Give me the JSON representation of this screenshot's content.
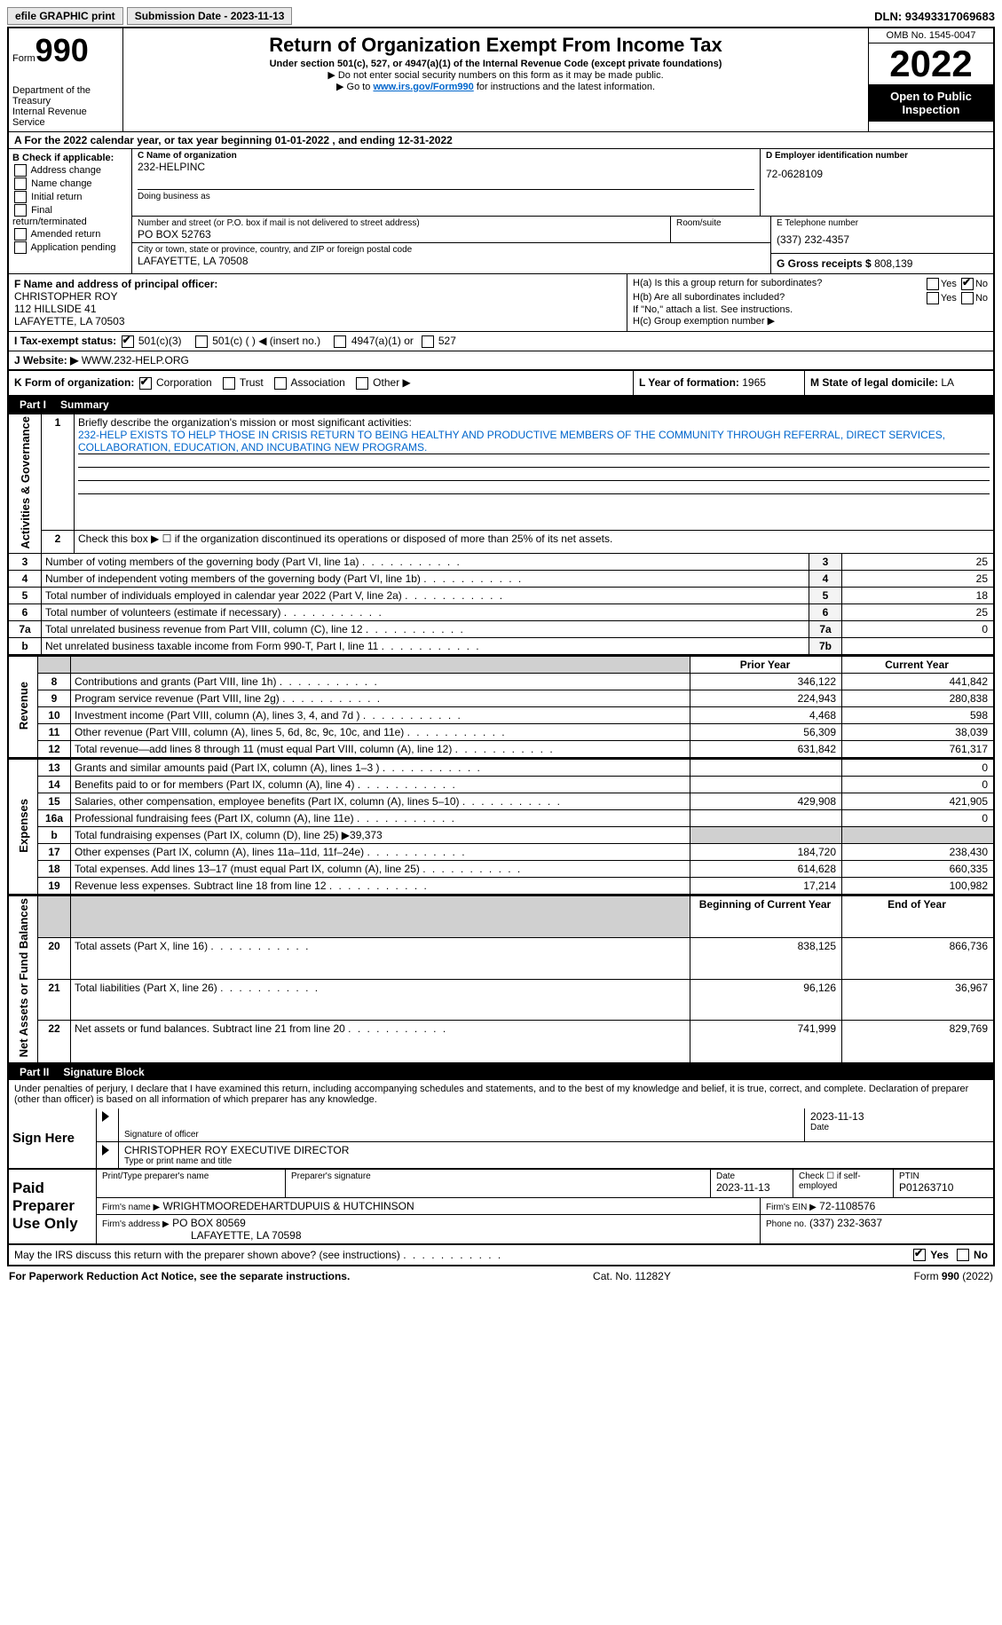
{
  "topbar": {
    "efile": "efile GRAPHIC print",
    "submission_label": "Submission Date - 2023-11-13",
    "dln_label": "DLN: 93493317069683"
  },
  "header": {
    "form_word": "Form",
    "form_num": "990",
    "dept": "Department of the Treasury",
    "irs": "Internal Revenue Service",
    "title": "Return of Organization Exempt From Income Tax",
    "subtitle": "Under section 501(c), 527, or 4947(a)(1) of the Internal Revenue Code (except private foundations)",
    "note1": "▶ Do not enter social security numbers on this form as it may be made public.",
    "note2_pre": "▶ Go to ",
    "note2_link": "www.irs.gov/Form990",
    "note2_post": " for instructions and the latest information.",
    "omb": "OMB No. 1545-0047",
    "year": "2022",
    "open": "Open to Public Inspection"
  },
  "rowA": {
    "text_pre": "A For the 2022 calendar year, or tax year beginning ",
    "begin": "01-01-2022",
    "mid": "  , and ending ",
    "end": "12-31-2022"
  },
  "colB": {
    "title": "B Check if applicable:",
    "opts": [
      "Address change",
      "Name change",
      "Initial return",
      "Final return/terminated",
      "Amended return",
      "Application pending"
    ]
  },
  "colC": {
    "name_label": "C Name of organization",
    "name": "232-HELPINC",
    "dba_label": "Doing business as",
    "addr_label": "Number and street (or P.O. box if mail is not delivered to street address)",
    "room_label": "Room/suite",
    "addr": "PO BOX 52763",
    "city_label": "City or town, state or province, country, and ZIP or foreign postal code",
    "city": "LAFAYETTE, LA   70508"
  },
  "colD": {
    "ein_label": "D Employer identification number",
    "ein": "72-0628109",
    "tel_label": "E Telephone number",
    "tel": "(337) 232-4357",
    "gross_label": "G Gross receipts $ ",
    "gross": "808,139"
  },
  "rowF": {
    "label": "F Name and address of principal officer:",
    "l1": "CHRISTOPHER ROY",
    "l2": "112 HILLSIDE 41",
    "l3": "LAFAYETTE, LA   70503"
  },
  "rowH": {
    "ha": "H(a)  Is this a group return for subordinates?",
    "hb": "H(b)  Are all subordinates included?",
    "hb_note": "If \"No,\" attach a list. See instructions.",
    "hc": "H(c)  Group exemption number ▶",
    "yes": "Yes",
    "no": "No"
  },
  "rowI": {
    "label": "I  Tax-exempt status:",
    "o1": "501(c)(3)",
    "o2": "501(c) (   ) ◀ (insert no.)",
    "o3": "4947(a)(1) or",
    "o4": "527"
  },
  "rowJ": {
    "label": "J  Website: ▶ ",
    "val": "WWW.232-HELP.ORG"
  },
  "rowK": {
    "label": "K Form of organization:",
    "o1": "Corporation",
    "o2": "Trust",
    "o3": "Association",
    "o4": "Other ▶",
    "l_label": "L Year of formation: ",
    "l_val": "1965",
    "m_label": "M State of legal domicile: ",
    "m_val": "LA"
  },
  "part1": {
    "tab": "Part I",
    "title": "Summary",
    "l1_label": "Briefly describe the organization's mission or most significant activities:",
    "l1_text": "232-HELP EXISTS TO HELP THOSE IN CRISIS RETURN TO BEING HEALTHY AND PRODUCTIVE MEMBERS OF THE COMMUNITY THROUGH REFERRAL, DIRECT SERVICES, COLLABORATION, EDUCATION, AND INCUBATING NEW PROGRAMS.",
    "l2": "Check this box ▶ ☐  if the organization discontinued its operations or disposed of more than 25% of its net assets.",
    "vlabels": {
      "a": "Activities & Governance",
      "b": "Revenue",
      "c": "Expenses",
      "d": "Net Assets or Fund Balances"
    },
    "rows": [
      {
        "n": "3",
        "t": "Number of voting members of the governing body (Part VI, line 1a)",
        "box": "3",
        "v2": "25"
      },
      {
        "n": "4",
        "t": "Number of independent voting members of the governing body (Part VI, line 1b)",
        "box": "4",
        "v2": "25"
      },
      {
        "n": "5",
        "t": "Total number of individuals employed in calendar year 2022 (Part V, line 2a)",
        "box": "5",
        "v2": "18"
      },
      {
        "n": "6",
        "t": "Total number of volunteers (estimate if necessary)",
        "box": "6",
        "v2": "25"
      },
      {
        "n": "7a",
        "t": "Total unrelated business revenue from Part VIII, column (C), line 12",
        "box": "7a",
        "v2": "0"
      },
      {
        "n": "b",
        "t": "Net unrelated business taxable income from Form 990-T, Part I, line 11",
        "box": "7b",
        "v2": ""
      }
    ],
    "hdr_prior": "Prior Year",
    "hdr_curr": "Current Year",
    "rev": [
      {
        "n": "8",
        "t": "Contributions and grants (Part VIII, line 1h)",
        "p": "346,122",
        "c": "441,842"
      },
      {
        "n": "9",
        "t": "Program service revenue (Part VIII, line 2g)",
        "p": "224,943",
        "c": "280,838"
      },
      {
        "n": "10",
        "t": "Investment income (Part VIII, column (A), lines 3, 4, and 7d )",
        "p": "4,468",
        "c": "598"
      },
      {
        "n": "11",
        "t": "Other revenue (Part VIII, column (A), lines 5, 6d, 8c, 9c, 10c, and 11e)",
        "p": "56,309",
        "c": "38,039"
      },
      {
        "n": "12",
        "t": "Total revenue—add lines 8 through 11 (must equal Part VIII, column (A), line 12)",
        "p": "631,842",
        "c": "761,317"
      }
    ],
    "exp": [
      {
        "n": "13",
        "t": "Grants and similar amounts paid (Part IX, column (A), lines 1–3 )",
        "p": "",
        "c": "0"
      },
      {
        "n": "14",
        "t": "Benefits paid to or for members (Part IX, column (A), line 4)",
        "p": "",
        "c": "0"
      },
      {
        "n": "15",
        "t": "Salaries, other compensation, employee benefits (Part IX, column (A), lines 5–10)",
        "p": "429,908",
        "c": "421,905"
      },
      {
        "n": "16a",
        "t": "Professional fundraising fees (Part IX, column (A), line 11e)",
        "p": "",
        "c": "0"
      },
      {
        "n": "b",
        "t": "Total fundraising expenses (Part IX, column (D), line 25) ▶39,373",
        "shade": true
      },
      {
        "n": "17",
        "t": "Other expenses (Part IX, column (A), lines 11a–11d, 11f–24e)",
        "p": "184,720",
        "c": "238,430"
      },
      {
        "n": "18",
        "t": "Total expenses. Add lines 13–17 (must equal Part IX, column (A), line 25)",
        "p": "614,628",
        "c": "660,335"
      },
      {
        "n": "19",
        "t": "Revenue less expenses. Subtract line 18 from line 12",
        "p": "17,214",
        "c": "100,982"
      }
    ],
    "hdr_beg": "Beginning of Current Year",
    "hdr_end": "End of Year",
    "net": [
      {
        "n": "20",
        "t": "Total assets (Part X, line 16)",
        "p": "838,125",
        "c": "866,736"
      },
      {
        "n": "21",
        "t": "Total liabilities (Part X, line 26)",
        "p": "96,126",
        "c": "36,967"
      },
      {
        "n": "22",
        "t": "Net assets or fund balances. Subtract line 21 from line 20",
        "p": "741,999",
        "c": "829,769"
      }
    ]
  },
  "part2": {
    "tab": "Part II",
    "title": "Signature Block",
    "decl": "Under penalties of perjury, I declare that I have examined this return, including accompanying schedules and statements, and to the best of my knowledge and belief, it is true, correct, and complete. Declaration of preparer (other than officer) is based on all information of which preparer has any knowledge.",
    "sign_here": "Sign Here",
    "sig_officer": "Signature of officer",
    "sig_date": "2023-11-13",
    "date_lbl": "Date",
    "name_title": "CHRISTOPHER ROY  EXECUTIVE DIRECTOR",
    "name_lbl": "Type or print name and title",
    "paid": "Paid Preparer Use Only",
    "p_name_lbl": "Print/Type preparer's name",
    "p_sig_lbl": "Preparer's signature",
    "p_date_lbl": "Date",
    "p_date": "2023-11-13",
    "p_check": "Check ☐ if self-employed",
    "ptin_lbl": "PTIN",
    "ptin": "P01263710",
    "firm_name_lbl": "Firm's name    ▶",
    "firm_name": "WRIGHTMOOREDEHARTDUPUIS & HUTCHINSON",
    "firm_ein_lbl": "Firm's EIN ▶",
    "firm_ein": "72-1108576",
    "firm_addr_lbl": "Firm's address ▶",
    "firm_addr1": "PO BOX 80569",
    "firm_addr2": "LAFAYETTE, LA   70598",
    "phone_lbl": "Phone no.",
    "phone": "(337) 232-3637",
    "may_discuss": "May the IRS discuss this return with the preparer shown above? (see instructions)",
    "yes": "Yes",
    "no": "No"
  },
  "footer": {
    "left": "For Paperwork Reduction Act Notice, see the separate instructions.",
    "mid": "Cat. No. 11282Y",
    "right": "Form 990 (2022)"
  }
}
